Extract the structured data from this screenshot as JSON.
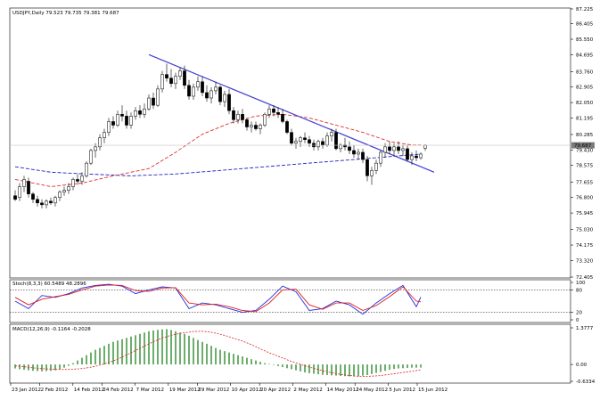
{
  "header": {
    "symbol": "USDJPY,Daily",
    "ohlc": "79.523 79.735 79.381 79.687"
  },
  "colors": {
    "bull": "#ffffff",
    "bear": "#000000",
    "ma_fast": "#e03030",
    "ma_slow": "#2020c0",
    "trendline": "#4040d0",
    "stoch_main": "#2030e0",
    "stoch_signal": "#e02020",
    "macd_hist": "#2e8b2e",
    "macd_signal": "#e02020",
    "last_price_bg": "#7a7a7a"
  },
  "chart_data": [
    {
      "type": "candlestick",
      "title": "USDJPY,Daily",
      "last_price": 79.687,
      "last_price_label": "79.687",
      "y_ticks": [
        "87.225",
        "86.405",
        "85.550",
        "84.695",
        "83.760",
        "82.905",
        "82.050",
        "81.195",
        "80.285",
        "79.430",
        "78.575",
        "77.655",
        "76.800",
        "75.945",
        "75.030",
        "74.175",
        "73.320",
        "72.405"
      ],
      "ylim": [
        72.405,
        87.225
      ],
      "x_ticks": [
        "23 Jan 2012",
        "2 Feb 2012",
        "14 Feb 2012",
        "24 Feb 2012",
        "7 Mar 2012",
        "19 Mar 2012",
        "29 Mar 2012",
        "10 Apr 2012",
        "20 Apr 2012",
        "2 May 2012",
        "14 May 2012",
        "24 May 2012",
        "5 Jun 2012",
        "15 Jun 2012"
      ],
      "candles": [
        {
          "o": 76.9,
          "h": 77.2,
          "l": 76.6,
          "c": 76.7
        },
        {
          "o": 76.8,
          "h": 77.6,
          "l": 76.6,
          "c": 77.4
        },
        {
          "o": 77.4,
          "h": 78.0,
          "l": 77.1,
          "c": 77.8
        },
        {
          "o": 77.7,
          "h": 77.9,
          "l": 76.8,
          "c": 77.0
        },
        {
          "o": 77.0,
          "h": 77.1,
          "l": 76.5,
          "c": 76.7
        },
        {
          "o": 76.7,
          "h": 76.9,
          "l": 76.3,
          "c": 76.5
        },
        {
          "o": 76.5,
          "h": 76.7,
          "l": 76.2,
          "c": 76.4
        },
        {
          "o": 76.4,
          "h": 76.7,
          "l": 76.2,
          "c": 76.6
        },
        {
          "o": 76.6,
          "h": 76.8,
          "l": 76.4,
          "c": 76.5
        },
        {
          "o": 76.5,
          "h": 76.9,
          "l": 76.3,
          "c": 76.8
        },
        {
          "o": 76.8,
          "h": 77.2,
          "l": 76.6,
          "c": 77.1
        },
        {
          "o": 77.1,
          "h": 77.4,
          "l": 76.9,
          "c": 77.2
        },
        {
          "o": 77.2,
          "h": 77.6,
          "l": 77.0,
          "c": 77.4
        },
        {
          "o": 77.4,
          "h": 77.9,
          "l": 77.2,
          "c": 77.8
        },
        {
          "o": 77.8,
          "h": 78.1,
          "l": 77.5,
          "c": 77.7
        },
        {
          "o": 77.7,
          "h": 78.2,
          "l": 77.5,
          "c": 78.0
        },
        {
          "o": 78.0,
          "h": 78.8,
          "l": 77.9,
          "c": 78.7
        },
        {
          "o": 78.7,
          "h": 79.5,
          "l": 78.6,
          "c": 79.4
        },
        {
          "o": 79.4,
          "h": 79.8,
          "l": 79.0,
          "c": 79.6
        },
        {
          "o": 79.6,
          "h": 80.3,
          "l": 79.4,
          "c": 80.1
        },
        {
          "o": 80.1,
          "h": 80.6,
          "l": 79.8,
          "c": 80.4
        },
        {
          "o": 80.4,
          "h": 81.2,
          "l": 80.2,
          "c": 81.0
        },
        {
          "o": 81.0,
          "h": 81.3,
          "l": 80.6,
          "c": 80.8
        },
        {
          "o": 80.8,
          "h": 81.6,
          "l": 80.7,
          "c": 81.4
        },
        {
          "o": 81.4,
          "h": 81.9,
          "l": 81.0,
          "c": 81.3
        },
        {
          "o": 81.3,
          "h": 81.6,
          "l": 80.6,
          "c": 80.8
        },
        {
          "o": 80.8,
          "h": 81.5,
          "l": 80.6,
          "c": 81.3
        },
        {
          "o": 81.3,
          "h": 81.8,
          "l": 81.1,
          "c": 81.6
        },
        {
          "o": 81.6,
          "h": 81.9,
          "l": 81.2,
          "c": 81.4
        },
        {
          "o": 81.4,
          "h": 82.0,
          "l": 81.2,
          "c": 81.7
        },
        {
          "o": 81.7,
          "h": 82.5,
          "l": 81.6,
          "c": 82.3
        },
        {
          "o": 82.3,
          "h": 82.6,
          "l": 81.7,
          "c": 81.9
        },
        {
          "o": 81.9,
          "h": 83.0,
          "l": 81.8,
          "c": 82.8
        },
        {
          "o": 82.8,
          "h": 83.8,
          "l": 82.6,
          "c": 83.6
        },
        {
          "o": 83.6,
          "h": 84.2,
          "l": 83.2,
          "c": 83.4
        },
        {
          "o": 83.4,
          "h": 83.9,
          "l": 82.9,
          "c": 83.1
        },
        {
          "o": 83.1,
          "h": 83.7,
          "l": 82.8,
          "c": 83.5
        },
        {
          "o": 83.5,
          "h": 84.0,
          "l": 83.3,
          "c": 83.8
        },
        {
          "o": 83.8,
          "h": 84.1,
          "l": 82.8,
          "c": 83.0
        },
        {
          "o": 83.0,
          "h": 83.3,
          "l": 82.2,
          "c": 82.4
        },
        {
          "o": 82.4,
          "h": 83.1,
          "l": 82.2,
          "c": 82.9
        },
        {
          "o": 82.9,
          "h": 83.5,
          "l": 82.7,
          "c": 83.2
        },
        {
          "o": 83.2,
          "h": 83.5,
          "l": 82.4,
          "c": 82.6
        },
        {
          "o": 82.6,
          "h": 83.0,
          "l": 82.1,
          "c": 82.3
        },
        {
          "o": 82.3,
          "h": 82.9,
          "l": 82.0,
          "c": 82.7
        },
        {
          "o": 82.7,
          "h": 83.2,
          "l": 82.5,
          "c": 82.9
        },
        {
          "o": 82.9,
          "h": 83.0,
          "l": 81.9,
          "c": 82.1
        },
        {
          "o": 82.1,
          "h": 82.7,
          "l": 81.8,
          "c": 82.5
        },
        {
          "o": 82.5,
          "h": 82.8,
          "l": 81.4,
          "c": 81.6
        },
        {
          "o": 81.6,
          "h": 81.8,
          "l": 80.9,
          "c": 81.1
        },
        {
          "o": 81.1,
          "h": 81.6,
          "l": 80.9,
          "c": 81.4
        },
        {
          "o": 81.4,
          "h": 81.7,
          "l": 80.9,
          "c": 81.1
        },
        {
          "o": 81.1,
          "h": 81.2,
          "l": 80.5,
          "c": 80.7
        },
        {
          "o": 80.7,
          "h": 81.0,
          "l": 80.4,
          "c": 80.8
        },
        {
          "o": 80.8,
          "h": 81.0,
          "l": 80.5,
          "c": 80.6
        },
        {
          "o": 80.6,
          "h": 80.9,
          "l": 80.3,
          "c": 80.8
        },
        {
          "o": 80.8,
          "h": 81.5,
          "l": 80.7,
          "c": 81.4
        },
        {
          "o": 81.4,
          "h": 81.9,
          "l": 81.2,
          "c": 81.7
        },
        {
          "o": 81.7,
          "h": 81.9,
          "l": 81.3,
          "c": 81.5
        },
        {
          "o": 81.5,
          "h": 81.8,
          "l": 81.2,
          "c": 81.4
        },
        {
          "o": 81.4,
          "h": 81.7,
          "l": 80.9,
          "c": 81.0
        },
        {
          "o": 81.0,
          "h": 81.1,
          "l": 80.3,
          "c": 80.4
        },
        {
          "o": 80.4,
          "h": 80.6,
          "l": 79.7,
          "c": 79.8
        },
        {
          "o": 79.8,
          "h": 80.1,
          "l": 79.5,
          "c": 79.9
        },
        {
          "o": 79.9,
          "h": 80.2,
          "l": 79.6,
          "c": 80.1
        },
        {
          "o": 80.1,
          "h": 80.4,
          "l": 79.8,
          "c": 80.0
        },
        {
          "o": 80.0,
          "h": 80.2,
          "l": 79.6,
          "c": 79.8
        },
        {
          "o": 79.8,
          "h": 80.0,
          "l": 79.4,
          "c": 79.6
        },
        {
          "o": 79.6,
          "h": 80.0,
          "l": 79.4,
          "c": 79.9
        },
        {
          "o": 79.9,
          "h": 80.1,
          "l": 79.5,
          "c": 79.7
        },
        {
          "o": 79.7,
          "h": 80.4,
          "l": 79.6,
          "c": 80.2
        },
        {
          "o": 80.2,
          "h": 80.6,
          "l": 79.9,
          "c": 80.4
        },
        {
          "o": 80.4,
          "h": 80.6,
          "l": 79.4,
          "c": 79.5
        },
        {
          "o": 79.5,
          "h": 79.8,
          "l": 79.3,
          "c": 79.7
        },
        {
          "o": 79.7,
          "h": 80.1,
          "l": 79.4,
          "c": 79.6
        },
        {
          "o": 79.6,
          "h": 79.9,
          "l": 79.2,
          "c": 79.4
        },
        {
          "o": 79.4,
          "h": 79.7,
          "l": 79.0,
          "c": 79.2
        },
        {
          "o": 79.2,
          "h": 79.5,
          "l": 78.9,
          "c": 79.3
        },
        {
          "o": 79.3,
          "h": 79.5,
          "l": 78.7,
          "c": 78.9
        },
        {
          "o": 78.9,
          "h": 79.1,
          "l": 77.7,
          "c": 78.0
        },
        {
          "o": 78.0,
          "h": 78.5,
          "l": 77.5,
          "c": 78.3
        },
        {
          "o": 78.3,
          "h": 78.9,
          "l": 78.1,
          "c": 78.7
        },
        {
          "o": 78.7,
          "h": 79.4,
          "l": 78.5,
          "c": 79.3
        },
        {
          "o": 79.3,
          "h": 79.8,
          "l": 79.0,
          "c": 79.6
        },
        {
          "o": 79.6,
          "h": 79.9,
          "l": 79.2,
          "c": 79.4
        },
        {
          "o": 79.4,
          "h": 79.8,
          "l": 79.1,
          "c": 79.6
        },
        {
          "o": 79.6,
          "h": 79.9,
          "l": 79.2,
          "c": 79.4
        },
        {
          "o": 79.4,
          "h": 79.7,
          "l": 79.1,
          "c": 79.5
        },
        {
          "o": 79.5,
          "h": 79.7,
          "l": 78.8,
          "c": 78.9
        },
        {
          "o": 78.9,
          "h": 79.3,
          "l": 78.6,
          "c": 79.1
        },
        {
          "o": 79.1,
          "h": 79.4,
          "l": 78.8,
          "c": 79.0
        },
        {
          "o": 79.0,
          "h": 79.3,
          "l": 78.9,
          "c": 79.2
        },
        {
          "o": 79.523,
          "h": 79.735,
          "l": 79.381,
          "c": 79.687
        }
      ],
      "ma_fast": [
        [
          0,
          77.8
        ],
        [
          8,
          77.4
        ],
        [
          15,
          77.6
        ],
        [
          22,
          78.0
        ],
        [
          30,
          78.4
        ],
        [
          36,
          79.3
        ],
        [
          42,
          80.3
        ],
        [
          48,
          80.9
        ],
        [
          54,
          81.3
        ],
        [
          60,
          81.4
        ],
        [
          66,
          81.2
        ],
        [
          72,
          80.8
        ],
        [
          78,
          80.4
        ],
        [
          84,
          79.9
        ],
        [
          89,
          79.7
        ],
        [
          91,
          79.7
        ]
      ],
      "ma_slow": [
        [
          0,
          78.5
        ],
        [
          8,
          78.2
        ],
        [
          16,
          78.1
        ],
        [
          26,
          78.0
        ],
        [
          36,
          78.1
        ],
        [
          46,
          78.3
        ],
        [
          56,
          78.5
        ],
        [
          66,
          78.7
        ],
        [
          76,
          78.9
        ],
        [
          86,
          79.1
        ],
        [
          91,
          79.2
        ]
      ],
      "trendline": [
        [
          30,
          84.7
        ],
        [
          94,
          78.2
        ]
      ]
    },
    {
      "type": "line",
      "title": "Stoch(8,3,3) 60.5489 48.2896",
      "y_ticks": [
        "100",
        "80",
        "20",
        "0"
      ],
      "ylim": [
        0,
        100
      ],
      "levels": [
        80,
        20
      ],
      "series": [
        {
          "name": "main",
          "x": [
            0,
            3,
            6,
            9,
            12,
            15,
            18,
            21,
            24,
            27,
            30,
            33,
            36,
            39,
            42,
            45,
            48,
            51,
            54,
            57,
            60,
            63,
            66,
            69,
            72,
            75,
            78,
            81,
            84,
            87,
            90,
            91
          ],
          "values": [
            50,
            30,
            65,
            60,
            70,
            85,
            92,
            95,
            90,
            70,
            80,
            88,
            85,
            30,
            45,
            40,
            30,
            20,
            25,
            55,
            90,
            75,
            25,
            30,
            50,
            40,
            15,
            45,
            70,
            92,
            35,
            61
          ]
        },
        {
          "name": "signal",
          "x": [
            0,
            3,
            6,
            9,
            12,
            15,
            18,
            21,
            24,
            27,
            30,
            33,
            36,
            39,
            42,
            45,
            48,
            51,
            54,
            57,
            60,
            63,
            66,
            69,
            72,
            75,
            78,
            81,
            84,
            87,
            90,
            91
          ],
          "values": [
            60,
            40,
            55,
            62,
            68,
            80,
            90,
            93,
            92,
            78,
            76,
            85,
            86,
            45,
            40,
            42,
            35,
            25,
            22,
            45,
            80,
            82,
            40,
            28,
            45,
            45,
            25,
            38,
            62,
            88,
            50,
            48
          ]
        }
      ]
    },
    {
      "type": "bar",
      "title": "MACD(12,26,9) -0.1164 -0.2028",
      "y_ticks": [
        "1.3777",
        "0.00",
        "-0.6334"
      ],
      "ylim": [
        -0.6334,
        1.3777
      ],
      "histogram": [
        -0.15,
        -0.18,
        -0.2,
        -0.22,
        -0.24,
        -0.25,
        -0.26,
        -0.25,
        -0.24,
        -0.22,
        -0.18,
        -0.12,
        -0.05,
        0.05,
        0.15,
        0.25,
        0.35,
        0.45,
        0.55,
        0.62,
        0.7,
        0.78,
        0.85,
        0.9,
        0.95,
        1.0,
        1.05,
        1.1,
        1.15,
        1.2,
        1.25,
        1.28,
        1.3,
        1.32,
        1.33,
        1.3,
        1.25,
        1.2,
        1.15,
        1.08,
        1.0,
        0.92,
        0.85,
        0.78,
        0.7,
        0.62,
        0.55,
        0.5,
        0.45,
        0.4,
        0.35,
        0.3,
        0.25,
        0.2,
        0.15,
        0.1,
        0.05,
        0.02,
        -0.02,
        -0.06,
        -0.1,
        -0.14,
        -0.18,
        -0.22,
        -0.26,
        -0.3,
        -0.33,
        -0.35,
        -0.37,
        -0.39,
        -0.4,
        -0.41,
        -0.42,
        -0.43,
        -0.44,
        -0.45,
        -0.45,
        -0.44,
        -0.42,
        -0.4,
        -0.36,
        -0.32,
        -0.28,
        -0.24,
        -0.2,
        -0.17,
        -0.15,
        -0.14,
        -0.13,
        -0.12,
        -0.12,
        -0.1164
      ],
      "signal": [
        -0.05,
        -0.08,
        -0.12,
        -0.15,
        -0.17,
        -0.18,
        -0.19,
        -0.18,
        -0.16,
        -0.12,
        -0.06,
        0.02,
        0.12,
        0.25,
        0.4,
        0.55,
        0.7,
        0.85,
        0.98,
        1.08,
        1.15,
        1.2,
        1.24,
        1.25,
        1.22,
        1.16,
        1.08,
        0.98,
        0.88,
        0.76,
        0.62,
        0.48,
        0.36,
        0.24,
        0.12,
        0.02,
        -0.08,
        -0.16,
        -0.24,
        -0.31,
        -0.37,
        -0.41,
        -0.44,
        -0.45,
        -0.44,
        -0.42,
        -0.38,
        -0.34,
        -0.29,
        -0.25,
        -0.2028
      ]
    }
  ]
}
